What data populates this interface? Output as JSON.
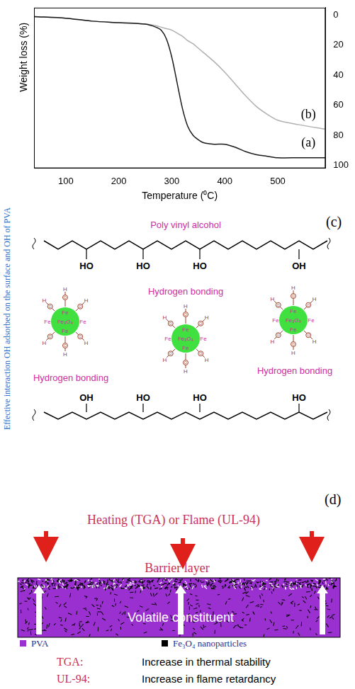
{
  "chart_data": {
    "type": "line",
    "x_label": "Temperature (⁰C)",
    "y_label": "Weight loss (%)",
    "x": [
      40,
      100,
      150,
      200,
      250,
      270,
      280,
      290,
      300,
      310,
      320,
      330,
      340,
      350,
      360,
      380,
      400,
      420,
      440,
      460,
      480,
      500,
      540,
      590
    ],
    "series": [
      {
        "name": "(a)",
        "color": "#1a1a1a",
        "values": [
          1,
          2,
          4,
          5,
          6,
          8,
          10,
          16,
          28,
          45,
          62,
          74,
          80,
          83,
          85,
          86,
          86,
          88,
          91,
          93,
          94,
          95,
          95,
          95
        ]
      },
      {
        "name": "(b)",
        "color": "#b0b0b0",
        "values": [
          1,
          2,
          4,
          5,
          6,
          7,
          8,
          9,
          10,
          12,
          14,
          17,
          19,
          22,
          25,
          31,
          38,
          46,
          54,
          61,
          66,
          70,
          73,
          76
        ]
      }
    ],
    "xlim": [
      40,
      590
    ],
    "xticks": [
      100,
      200,
      300,
      400,
      500
    ],
    "ylim": [
      -5,
      102
    ],
    "yticks": [
      0,
      20,
      40,
      60,
      80,
      100
    ],
    "grid": false
  },
  "panel_c": {
    "label": "(c)",
    "side_text": "Effective interaction OH adsorbed on the surface  and OH of PVA",
    "polymer": "Poly vinyl alcohol",
    "top_groups": [
      "HO",
      "HO",
      "HO",
      "OH"
    ],
    "bottom_groups": [
      "OH",
      "HO",
      "HO",
      "HO"
    ],
    "particles": [
      {
        "core": "Fe₃O₄",
        "atom": "Fe",
        "oxygen": "O",
        "hydrogen": "H"
      },
      {
        "core": "Fe₃O₄",
        "atom": "Fe",
        "oxygen": "O",
        "hydrogen": "H"
      },
      {
        "core": "Fe₃O₄",
        "atom": "Fe",
        "oxygen": "O",
        "hydrogen": "H"
      }
    ],
    "bond_labels": [
      "Hydrogen bonding",
      "Hydrogen bonding",
      "Hydrogen bonding"
    ]
  },
  "panel_d": {
    "label": "(d)",
    "heading": "Heating (TGA) or Flame (UL-94)",
    "top_label": "Barrier layer",
    "inner_label": "Volatile constituent",
    "items": [
      {
        "name": "PVA",
        "color": "#9b30d0"
      },
      {
        "name": "Fe₃O₄ nanoparticles",
        "color": "#000000"
      }
    ],
    "results": [
      {
        "test": "TGA:",
        "effect": "Increase in thermal stability"
      },
      {
        "test": "UL-94:",
        "effect": "Increase in flame retardancy"
      }
    ]
  }
}
